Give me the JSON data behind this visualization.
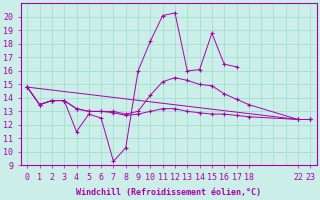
{
  "xlabel": "Windchill (Refroidissement éolien,°C)",
  "bg_color": "#cceee8",
  "grid_color": "#99ddcc",
  "line_color": "#aa00aa",
  "ylim": [
    9,
    21
  ],
  "yticks": [
    9,
    10,
    11,
    12,
    13,
    14,
    15,
    16,
    17,
    18,
    19,
    20
  ],
  "xtick_positions": [
    0,
    1,
    2,
    3,
    4,
    5,
    6,
    7,
    8,
    9,
    10,
    11,
    12,
    13,
    14,
    15,
    16,
    17,
    18,
    22,
    23
  ],
  "xtick_labels": [
    "0",
    "1",
    "2",
    "3",
    "4",
    "5",
    "6",
    "7",
    "8",
    "9",
    "10",
    "11",
    "12",
    "13",
    "14",
    "15",
    "16",
    "17",
    "18",
    "22",
    "23"
  ],
  "series1_x": [
    0,
    1,
    2,
    3,
    4,
    5,
    6,
    7,
    8,
    9,
    10,
    11,
    12,
    13,
    14,
    15,
    16,
    17
  ],
  "series1_y": [
    14.8,
    13.5,
    13.8,
    13.8,
    11.5,
    12.8,
    12.5,
    9.3,
    10.3,
    16.0,
    18.2,
    20.1,
    20.3,
    16.0,
    16.1,
    18.8,
    16.5,
    16.3
  ],
  "series2_x": [
    0,
    1,
    2,
    3,
    4,
    5,
    6,
    7,
    8,
    9,
    10,
    11,
    12,
    13,
    14,
    15,
    16,
    17,
    18,
    22,
    23
  ],
  "series2_y": [
    14.8,
    13.5,
    13.8,
    13.8,
    13.2,
    13.0,
    13.0,
    13.0,
    12.8,
    13.0,
    14.2,
    15.2,
    15.5,
    15.3,
    15.0,
    14.9,
    14.3,
    13.9,
    13.5,
    12.4,
    12.4
  ],
  "series3_x": [
    0,
    1,
    2,
    3,
    4,
    5,
    6,
    7,
    8,
    9,
    10,
    11,
    12,
    13,
    14,
    15,
    16,
    17,
    18,
    22,
    23
  ],
  "series3_y": [
    14.8,
    13.5,
    13.8,
    13.8,
    13.2,
    13.0,
    13.0,
    12.9,
    12.7,
    12.8,
    13.0,
    13.2,
    13.2,
    13.0,
    12.9,
    12.8,
    12.8,
    12.7,
    12.6,
    12.4,
    12.4
  ],
  "series4_x": [
    0,
    22,
    23
  ],
  "series4_y": [
    14.8,
    12.4,
    12.4
  ],
  "tick_fontsize": 6,
  "xlabel_fontsize": 6
}
